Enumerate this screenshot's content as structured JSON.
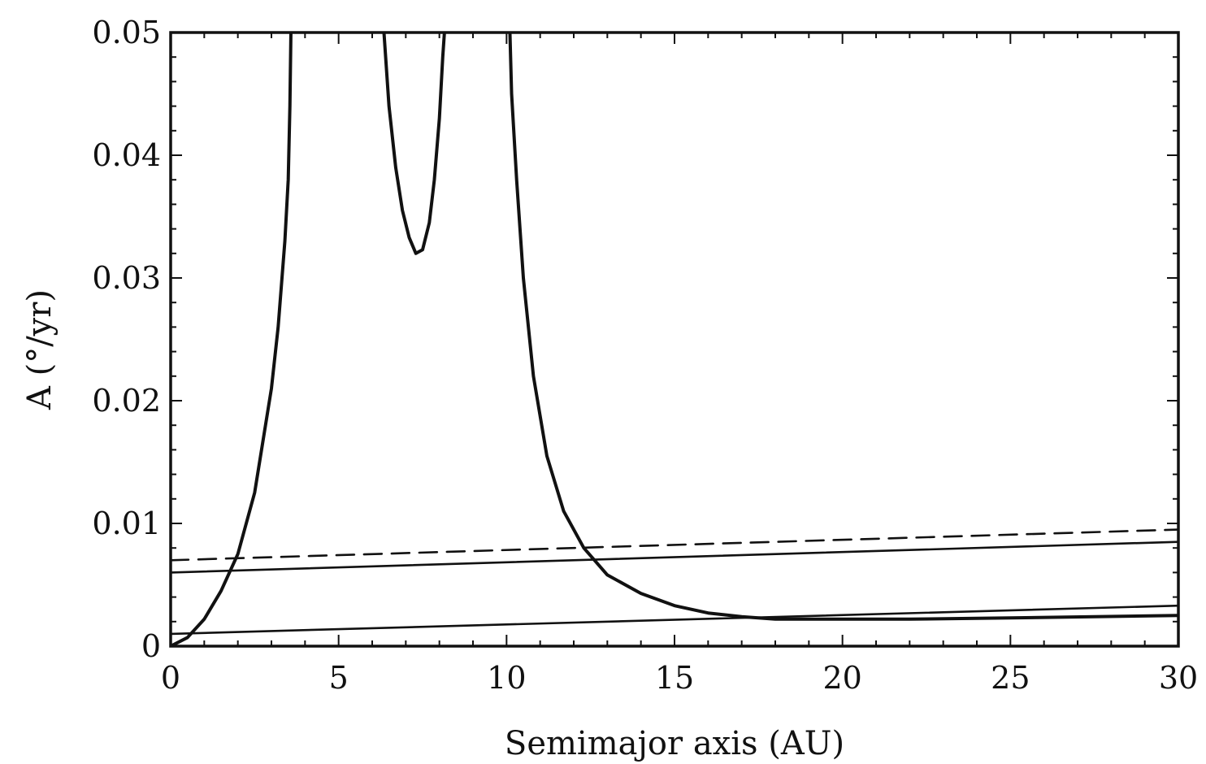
{
  "chart_data": {
    "type": "line",
    "xlabel": "Semimajor axis (AU)",
    "ylabel": "A (°/yr)",
    "xlim": [
      0,
      30
    ],
    "ylim": [
      0,
      0.05
    ],
    "xticks": [
      0,
      5,
      10,
      15,
      20,
      25,
      30
    ],
    "xtick_labels": [
      "0",
      "5",
      "10",
      "15",
      "20",
      "25",
      "30"
    ],
    "yticks": [
      0,
      0.01,
      0.02,
      0.03,
      0.04,
      0.05
    ],
    "ytick_labels": [
      "0",
      "0.01",
      "0.02",
      "0.03",
      "0.04",
      "0.05"
    ],
    "grid": false,
    "legend": "none",
    "series": [
      {
        "style": "solid-thick",
        "segments": [
          {
            "x": [
              0.0,
              0.5,
              1.0,
              1.5,
              2.0,
              2.5,
              3.0,
              3.2,
              3.4,
              3.5,
              3.55,
              3.58
            ],
            "y": [
              0.0,
              0.0007,
              0.0022,
              0.0045,
              0.0075,
              0.0125,
              0.021,
              0.026,
              0.033,
              0.038,
              0.044,
              0.05
            ]
          },
          {
            "x": [
              6.35,
              6.5,
              6.7,
              6.9,
              7.1,
              7.3,
              7.5,
              7.7,
              7.85,
              8.0,
              8.1,
              8.15
            ],
            "y": [
              0.05,
              0.044,
              0.039,
              0.0355,
              0.0333,
              0.032,
              0.0323,
              0.0345,
              0.038,
              0.043,
              0.048,
              0.05
            ]
          },
          {
            "x": [
              10.1,
              10.15,
              10.3,
              10.5,
              10.8,
              11.2,
              11.7,
              12.3,
              13.0,
              14.0,
              15.0,
              16.0,
              17.0,
              18.0,
              19.0,
              20.0,
              22.0,
              25.0,
              30.0
            ],
            "y": [
              0.05,
              0.045,
              0.038,
              0.03,
              0.022,
              0.0155,
              0.011,
              0.008,
              0.0058,
              0.0043,
              0.0033,
              0.0027,
              0.0024,
              0.0022,
              0.0022,
              0.0022,
              0.0022,
              0.0023,
              0.0025
            ]
          }
        ]
      },
      {
        "style": "dashed",
        "segments": [
          {
            "x": [
              0,
              30
            ],
            "y": [
              0.007,
              0.0095
            ]
          }
        ]
      },
      {
        "style": "solid-thin",
        "segments": [
          {
            "x": [
              0,
              30
            ],
            "y": [
              0.006,
              0.0085
            ]
          }
        ]
      },
      {
        "style": "solid-thin",
        "segments": [
          {
            "x": [
              0,
              30
            ],
            "y": [
              0.001,
              0.0033
            ]
          }
        ]
      }
    ]
  }
}
